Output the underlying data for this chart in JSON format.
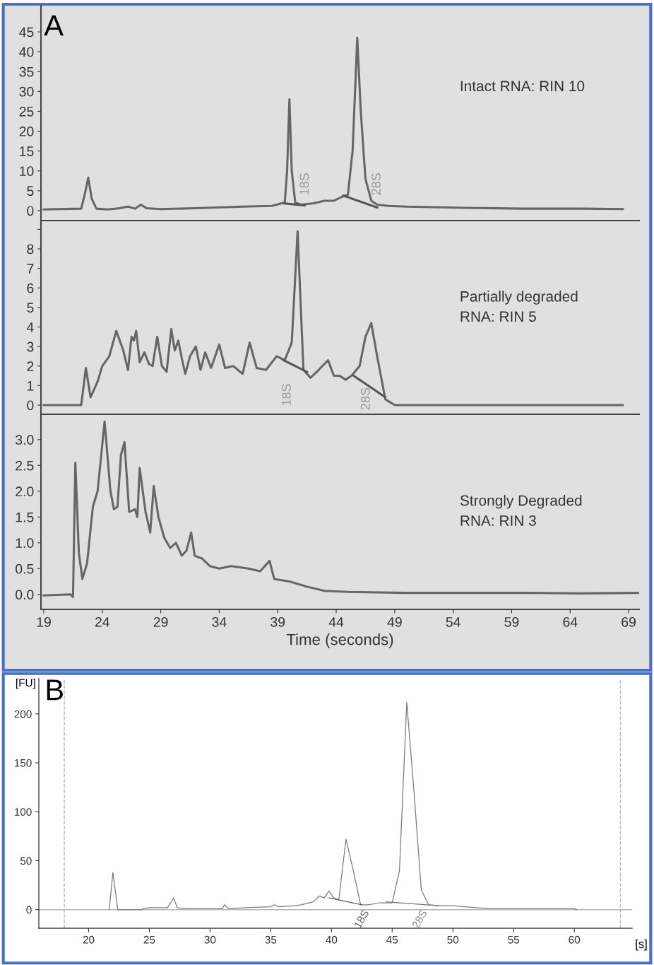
{
  "chart_data": [
    {
      "type": "line",
      "xlim": [
        18.76,
        69.9
      ],
      "xticks": [
        19,
        24,
        29,
        34,
        39,
        44,
        49,
        54,
        59,
        64,
        69
      ],
      "ylim": [
        -2.5,
        51.6
      ],
      "yticks": [
        0,
        5,
        10,
        15,
        20,
        25,
        30,
        35,
        40,
        45
      ],
      "tick_labels": "y",
      "grid": false,
      "legend": false,
      "marker": "none",
      "line_style": "solid",
      "series": [
        {
          "color": "#666666",
          "x": [
            19,
            22.2,
            22.5,
            22.8,
            23.1,
            23.5,
            24.5,
            25.5,
            26.2,
            26.8,
            27.3,
            27.8,
            29,
            32,
            36,
            38.5,
            39.3,
            39.6,
            39.8,
            40.0,
            40.2,
            40.5,
            41,
            42,
            43,
            43.8,
            44.5,
            45.0,
            45.4,
            45.8,
            46.1,
            46.5,
            47,
            47.5,
            48.5,
            50,
            55,
            60,
            65,
            68.5
          ],
          "values": [
            0.3,
            0.5,
            4,
            8.3,
            3,
            0.5,
            0.3,
            0.6,
            1.0,
            0.5,
            1.5,
            0.6,
            0.4,
            0.6,
            1.0,
            1.2,
            1.8,
            2,
            10,
            28,
            10,
            2,
            1.5,
            1.8,
            2.5,
            2.5,
            3.5,
            4,
            15,
            43.5,
            25,
            8,
            2.5,
            1.5,
            1.2,
            1.0,
            0.7,
            0.5,
            0.5,
            0.4
          ]
        },
        {
          "color": "#555555",
          "x": [
            39.6,
            41.3
          ],
          "values": [
            1.8,
            1.3
          ]
        },
        {
          "color": "#555555",
          "x": [
            44.6,
            47.5
          ],
          "values": [
            3.8,
            0.8
          ]
        }
      ],
      "annotations": [
        "A",
        "Intact RNA: RIN 10",
        "18S",
        "28S"
      ]
    },
    {
      "type": "line",
      "xlim": [
        18.76,
        69.9
      ],
      "xticks": [
        19,
        24,
        29,
        34,
        39,
        44,
        49,
        54,
        59,
        64,
        69
      ],
      "ylim": [
        -0.47,
        9.45
      ],
      "yticks": [
        0,
        1,
        2,
        3,
        4,
        5,
        6,
        7,
        8,
        {
          "value": 9,
          "label": null
        }
      ],
      "tick_labels": "y",
      "grid": false,
      "legend": false,
      "marker": "none",
      "line_style": "solid",
      "series": [
        {
          "color": "#666666",
          "x": [
            19,
            22.2,
            22.6,
            23.0,
            23.6,
            24.0,
            24.6,
            25.2,
            25.8,
            26.2,
            26.5,
            26.7,
            26.9,
            27.2,
            27.6,
            28.0,
            28.3,
            28.7,
            29.1,
            29.5,
            29.9,
            30.2,
            30.5,
            30.8,
            31.1,
            31.5,
            32.0,
            32.4,
            32.8,
            33.3,
            34.0,
            34.5,
            35.2,
            36.0,
            36.6,
            37.2,
            38.0,
            38.9,
            39.6,
            40.2,
            40.7,
            41.2,
            41.8,
            42.5,
            43.3,
            43.8,
            44.3,
            44.8,
            45.3,
            46.0,
            46.5,
            47.0,
            47.5,
            48.2,
            49,
            55,
            60,
            65,
            68.5
          ],
          "values": [
            0,
            0,
            1.9,
            0.4,
            1.2,
            2.0,
            2.5,
            3.8,
            2.8,
            1.8,
            3.5,
            3.3,
            3.8,
            2.2,
            2.7,
            2.1,
            2.0,
            3.5,
            2.0,
            1.7,
            3.9,
            2.8,
            3.3,
            2.4,
            1.6,
            2.5,
            3.0,
            1.8,
            2.7,
            1.9,
            3.1,
            1.9,
            2.0,
            1.6,
            3.2,
            1.9,
            1.8,
            2.5,
            2.3,
            3.2,
            8.9,
            1.8,
            1.4,
            1.8,
            2.3,
            1.5,
            1.5,
            1.3,
            1.5,
            2.0,
            3.5,
            4.2,
            2.5,
            0.3,
            0,
            0,
            0,
            0,
            0
          ]
        },
        {
          "color": "#555555",
          "x": [
            39.5,
            41.5
          ],
          "values": [
            2.3,
            1.7
          ]
        },
        {
          "color": "#555555",
          "x": [
            45.5,
            48.2
          ],
          "values": [
            1.5,
            0.4
          ]
        }
      ],
      "annotations": [
        "Partially degraded\nRNA: RIN 5",
        "18S",
        "28S"
      ]
    },
    {
      "type": "line",
      "xlim": [
        18.76,
        69.9
      ],
      "xticks": [
        19,
        24,
        29,
        34,
        39,
        44,
        49,
        54,
        59,
        64,
        69
      ],
      "ylim": [
        -0.29,
        3.49
      ],
      "yticks": [
        {
          "value": 0,
          "label": "0.0"
        },
        0.5,
        {
          "value": 1,
          "label": "1.0"
        },
        1.5,
        {
          "value": 2,
          "label": "2.0"
        },
        2.5,
        {
          "value": 3,
          "label": "3.0"
        }
      ],
      "xlabel": "Time (seconds)",
      "grid": false,
      "legend": false,
      "marker": "none",
      "line_style": "solid",
      "series": [
        {
          "color": "#666666",
          "x": [
            19,
            21.3,
            21.5,
            21.7,
            22.0,
            22.3,
            22.7,
            23.2,
            23.6,
            24.2,
            24.7,
            25.0,
            25.3,
            25.6,
            25.9,
            26.3,
            26.8,
            27.0,
            27.2,
            27.7,
            28.1,
            28.4,
            28.8,
            29.3,
            29.8,
            30.3,
            30.8,
            31.2,
            31.6,
            31.9,
            32.5,
            33.2,
            34.0,
            35.0,
            36.5,
            37.5,
            38.3,
            38.7,
            40,
            41.5,
            43,
            45,
            50,
            55,
            60,
            65,
            69.8
          ],
          "values": [
            -0.02,
            0,
            -0.05,
            2.55,
            0.8,
            0.3,
            0.6,
            1.7,
            2.0,
            3.35,
            2.0,
            1.65,
            1.7,
            2.7,
            2.95,
            1.6,
            1.65,
            1.5,
            2.45,
            1.6,
            1.2,
            2.1,
            1.5,
            1.1,
            0.9,
            1.0,
            0.75,
            0.85,
            1.2,
            0.75,
            0.7,
            0.55,
            0.5,
            0.55,
            0.5,
            0.45,
            0.65,
            0.3,
            0.25,
            0.15,
            0.07,
            0.05,
            0.03,
            0.03,
            0.03,
            0.02,
            0.03
          ]
        }
      ],
      "annotations": [
        "Strongly Degraded\nRNA: RIN 3"
      ]
    },
    {
      "type": "line",
      "xlim": [
        15.9,
        64.76
      ],
      "xticks": [
        20,
        25,
        30,
        35,
        40,
        45,
        50,
        55,
        60
      ],
      "ylim": [
        -19,
        236
      ],
      "yticks": [
        0,
        50,
        100,
        150,
        200
      ],
      "xlabel": "[s]",
      "ylabel": "[FU]",
      "grid": false,
      "legend": false,
      "marker": "none",
      "line_style": "solid",
      "ref_lines": [
        {
          "axis": "x",
          "value": 18,
          "color": "#b8b8b8",
          "line_style": "dashed"
        },
        {
          "axis": "x",
          "value": 63.8,
          "color": "#b8b8b8",
          "line_style": "dashed"
        },
        {
          "axis": "y",
          "value": 0,
          "color": "#b8b8b8",
          "line_style": "solid"
        }
      ],
      "series": [
        {
          "color": "#7a7a7a",
          "x": [
            21.7,
            22.0,
            22.4,
            24.4,
            24.5,
            25,
            26.5,
            27,
            27.3,
            28,
            31,
            31.2,
            31.5,
            33,
            35,
            35.3,
            35.6,
            37,
            37.5,
            38.5,
            39,
            39.4,
            39.8,
            40.2,
            40.6,
            41.2,
            41.8,
            42.4,
            43,
            44,
            45,
            45.6,
            46.2,
            46.8,
            47.4,
            48,
            49,
            50,
            51,
            53,
            55,
            60,
            60.2
          ],
          "values": [
            0,
            38,
            0,
            0,
            1,
            2,
            2,
            12,
            2,
            1,
            1,
            5,
            1,
            2,
            3,
            5,
            3,
            4,
            5,
            8,
            14,
            12,
            19,
            12,
            10,
            72,
            40,
            5,
            5,
            7,
            7,
            40,
            212,
            120,
            20,
            5,
            4,
            4,
            3,
            1,
            1,
            1,
            0
          ]
        },
        {
          "color": "#555555",
          "x": [
            39.8,
            42.5
          ],
          "values": [
            12,
            5
          ]
        },
        {
          "color": "#777777",
          "x": [
            44.5,
            48.8
          ],
          "values": [
            8,
            4
          ]
        }
      ],
      "annotations": [
        "B",
        "18S",
        "28S"
      ]
    }
  ]
}
